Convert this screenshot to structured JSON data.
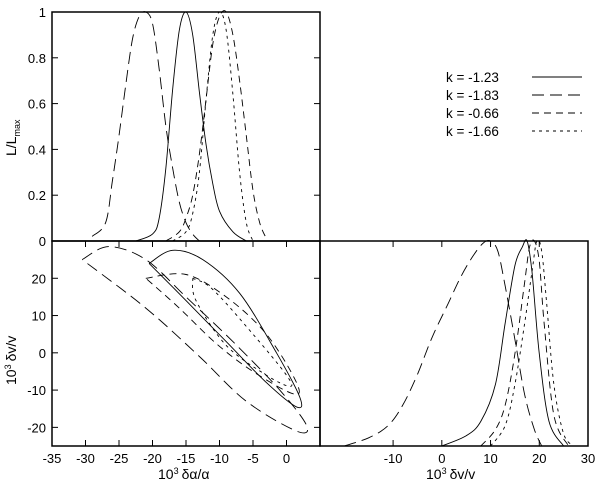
{
  "chart_data": [
    {
      "panel": "top-left",
      "type": "line",
      "ylabel": "L/L",
      "ylabel_sub": "max",
      "xlim": [
        -35,
        5
      ],
      "ylim": [
        0,
        1
      ],
      "x_ticks": [],
      "y_ticks": [
        "0",
        "0.2",
        "0.4",
        "0.6",
        "0.8",
        "1"
      ],
      "series": [
        {
          "name": "k = -1.23",
          "dash": "solid",
          "x": [
            -22.5,
            -20,
            -19,
            -18,
            -17,
            -16,
            -15,
            -14,
            -13,
            -12,
            -11,
            -10,
            -8,
            -6
          ],
          "y": [
            0,
            0.03,
            0.1,
            0.32,
            0.66,
            0.92,
            1.0,
            0.9,
            0.65,
            0.42,
            0.25,
            0.13,
            0.04,
            0
          ]
        },
        {
          "name": "k = -1.83",
          "dash": "12,6",
          "x": [
            -29,
            -27,
            -26,
            -25,
            -24,
            -23,
            -22,
            -21,
            -20,
            -19,
            -18,
            -17,
            -16,
            -15,
            -14,
            -13
          ],
          "y": [
            0.02,
            0.08,
            0.26,
            0.46,
            0.68,
            0.88,
            0.98,
            1.0,
            0.95,
            0.75,
            0.5,
            0.32,
            0.17,
            0.08,
            0.03,
            0
          ]
        },
        {
          "name": "k = -0.66",
          "dash": "7,5",
          "x": [
            -18,
            -16,
            -15,
            -14,
            -13,
            -12,
            -11,
            -10,
            -9,
            -8,
            -7,
            -6,
            -5,
            -4,
            -3
          ],
          "y": [
            0,
            0.04,
            0.1,
            0.2,
            0.38,
            0.62,
            0.86,
            0.98,
            1.0,
            0.9,
            0.7,
            0.46,
            0.22,
            0.08,
            0.01
          ]
        },
        {
          "name": "k = -1.66",
          "dash": "3,4",
          "x": [
            -17,
            -15,
            -14,
            -13,
            -12,
            -11,
            -10,
            -9,
            -8,
            -7,
            -6,
            -5
          ],
          "y": [
            0,
            0.04,
            0.12,
            0.3,
            0.62,
            0.9,
            1.0,
            0.92,
            0.64,
            0.3,
            0.08,
            0
          ]
        }
      ]
    },
    {
      "panel": "bottom-left",
      "type": "line",
      "xlabel": "10",
      "xlabel_sup": "3",
      "xlabel_main": "δα/α",
      "ylabel": "10",
      "ylabel_sup": "3",
      "ylabel_main": "δv/v",
      "xlim": [
        -35,
        5
      ],
      "ylim": [
        -25,
        30
      ],
      "x_ticks": [
        "-35",
        "-30",
        "-25",
        "-20",
        "-15",
        "-10",
        "-5",
        "0"
      ],
      "y_ticks": [
        "-20",
        "-10",
        "0",
        "10",
        "20"
      ],
      "series": [
        {
          "name": "k = -1.23",
          "dash": "solid",
          "x": [
            -20.5,
            -17,
            -12.5,
            -7,
            -1.5,
            2,
            1.5,
            -3,
            -9,
            -15,
            -20.5
          ],
          "y": [
            24,
            27.5,
            25,
            16,
            0,
            -12,
            -14.5,
            -8,
            3,
            14,
            24
          ]
        },
        {
          "name": "k = -1.83",
          "dash": "12,6",
          "x": [
            -30.5,
            -26.5,
            -21,
            -15,
            -8,
            -1,
            3,
            1.5,
            -6,
            -13,
            -21,
            -30.5
          ],
          "y": [
            25,
            28.5,
            25,
            15,
            3,
            -10,
            -19.5,
            -21,
            -13,
            -1,
            12,
            25
          ]
        },
        {
          "name": "k = -0.66",
          "dash": "7,5",
          "x": [
            -21,
            -15,
            -9,
            -3,
            1.5,
            1,
            -5,
            -10.5,
            -16,
            -21
          ],
          "y": [
            20,
            21,
            15,
            5,
            -8,
            -11,
            -5,
            2.5,
            12,
            20
          ]
        },
        {
          "name": "k = -1.66",
          "dash": "3,4",
          "x": [
            -14,
            -11,
            -5,
            0,
            0.5,
            -3,
            -9,
            -13.5,
            -14
          ],
          "y": [
            20,
            17,
            5,
            -6,
            -9,
            -6,
            2,
            14,
            20
          ]
        }
      ]
    },
    {
      "panel": "bottom-right",
      "type": "line",
      "xlabel": "10",
      "xlabel_sup": "3",
      "xlabel_main": "δv/v",
      "xlim": [
        -25,
        30
      ],
      "ylim": [
        0,
        1
      ],
      "x_ticks": [
        "-10",
        "0",
        "10",
        "20",
        "30"
      ],
      "y_ticks": [],
      "series": [
        {
          "name": "k = -1.23",
          "dash": "solid",
          "x": [
            0,
            5,
            8,
            11,
            13,
            15,
            16.5,
            17.5,
            18.5,
            20,
            22,
            25
          ],
          "y": [
            0,
            0.05,
            0.12,
            0.3,
            0.6,
            0.88,
            0.97,
            1.0,
            0.85,
            0.45,
            0.12,
            0
          ]
        },
        {
          "name": "k = -1.83",
          "dash": "12,6",
          "x": [
            -20,
            -15,
            -11,
            -8,
            -5,
            -2,
            1,
            4,
            6.5,
            8.5,
            10,
            11.5,
            13,
            15,
            17,
            19,
            20.5
          ],
          "y": [
            0,
            0.04,
            0.1,
            0.2,
            0.35,
            0.53,
            0.68,
            0.83,
            0.93,
            0.99,
            1.0,
            0.95,
            0.78,
            0.52,
            0.25,
            0.08,
            0
          ]
        },
        {
          "name": "k = -0.66",
          "dash": "7,5",
          "x": [
            8,
            11,
            13,
            15,
            17,
            18,
            19,
            20,
            21,
            23,
            26
          ],
          "y": [
            0,
            0.08,
            0.2,
            0.45,
            0.8,
            0.97,
            1.0,
            0.9,
            0.6,
            0.15,
            0
          ]
        },
        {
          "name": "k = -1.66",
          "dash": "3,4",
          "x": [
            10,
            13,
            15,
            17,
            18.5,
            19.5,
            20.5,
            21.5,
            23,
            25,
            27
          ],
          "y": [
            0,
            0.1,
            0.3,
            0.6,
            0.85,
            1.0,
            0.95,
            0.7,
            0.3,
            0.06,
            0
          ]
        }
      ]
    }
  ],
  "legend": [
    {
      "label": "k = -1.23",
      "dash": "solid"
    },
    {
      "label": "k = -1.83",
      "dash": "12,6"
    },
    {
      "label": "k = -0.66",
      "dash": "7,5"
    },
    {
      "label": "k = -1.66",
      "dash": "3,4"
    }
  ]
}
